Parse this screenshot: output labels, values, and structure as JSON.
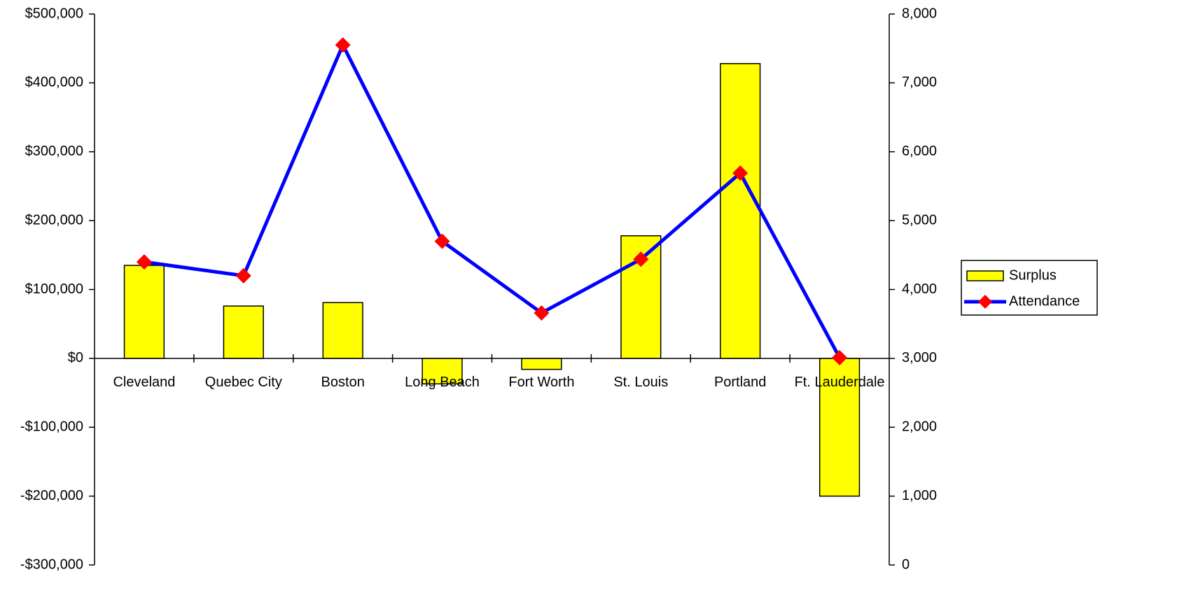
{
  "chart_data": {
    "type": "bar",
    "categories": [
      "Cleveland",
      "Quebec City",
      "Boston",
      "Long Beach",
      "Fort Worth",
      "St. Louis",
      "Portland",
      "Ft. Lauderdale"
    ],
    "series": [
      {
        "name": "Surplus",
        "type": "bar",
        "color": "#ffff00",
        "values": [
          135000,
          76000,
          81000,
          -37000,
          -16000,
          178000,
          428000,
          -200000
        ]
      },
      {
        "name": "Attendance",
        "type": "line",
        "axis": "y2",
        "color": "#0000ff",
        "marker_color": "#ff0000",
        "values": [
          4400,
          4200,
          7550,
          4700,
          3660,
          4440,
          5690,
          3010
        ]
      }
    ],
    "ylim": [
      -300000,
      500000
    ],
    "yticks": [
      {
        "value": -300000,
        "label": "-$300,000"
      },
      {
        "value": -200000,
        "label": "-$200,000"
      },
      {
        "value": -100000,
        "label": "-$100,000"
      },
      {
        "value": 0,
        "label": "$0"
      },
      {
        "value": 100000,
        "label": "$100,000"
      },
      {
        "value": 200000,
        "label": "$200,000"
      },
      {
        "value": 300000,
        "label": "$300,000"
      },
      {
        "value": 400000,
        "label": "$400,000"
      },
      {
        "value": 500000,
        "label": "$500,000"
      }
    ],
    "y2lim": [
      0,
      8000
    ],
    "y2ticks": [
      0,
      {
        "value": 1000,
        "label": "1,000"
      },
      {
        "value": 2000,
        "label": "2,000"
      },
      {
        "value": 3000,
        "label": "3,000"
      },
      {
        "value": 4000,
        "label": "4,000"
      },
      {
        "value": 5000,
        "label": "5,000"
      },
      {
        "value": 6000,
        "label": "6,000"
      },
      {
        "value": 7000,
        "label": "7,000"
      },
      {
        "value": 8000,
        "label": "8,000"
      }
    ],
    "grid": false,
    "legend": "right"
  }
}
